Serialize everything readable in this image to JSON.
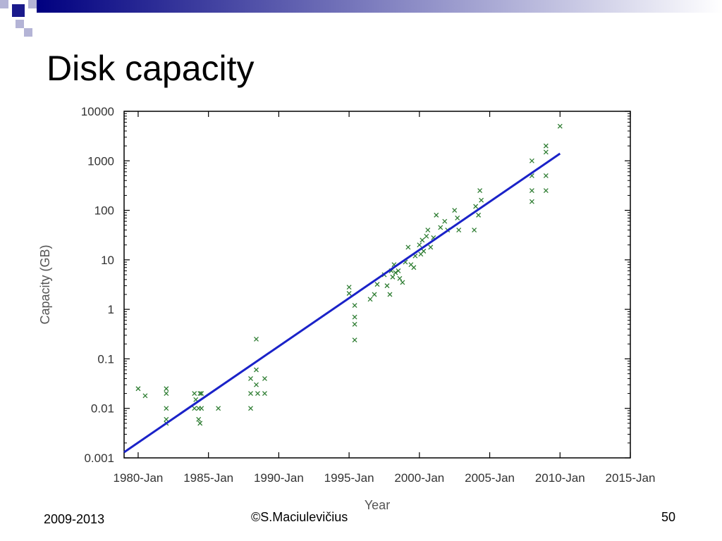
{
  "slide": {
    "title": "Disk capacity",
    "footer_left": "2009-2013",
    "footer_center": "©S.Maciulevičius",
    "page_number": "50"
  },
  "decoration": {
    "bar_color_dark": "#000080",
    "bar_color_light": "#ffffff",
    "square_dark": "#1a1a8c",
    "square_light": "#b4b4d6"
  },
  "chart_data": {
    "type": "scatter",
    "xlabel": "Year",
    "ylabel": "Capacity (GB)",
    "xlim": [
      1979,
      2015
    ],
    "ylim": [
      0.001,
      10000
    ],
    "yscale": "log",
    "grid": false,
    "marker": "x",
    "marker_color": "#2e7d32",
    "line_color": "#1a22c8",
    "x_ticks": [
      1980,
      1985,
      1990,
      1995,
      2000,
      2005,
      2010,
      2015
    ],
    "x_tick_labels": [
      "1980-Jan",
      "1985-Jan",
      "1990-Jan",
      "1995-Jan",
      "2000-Jan",
      "2005-Jan",
      "2010-Jan",
      "2015-Jan"
    ],
    "y_ticks": [
      0.001,
      0.01,
      0.1,
      1,
      10,
      100,
      1000,
      10000
    ],
    "y_tick_labels": [
      "0.001",
      "0.01",
      "0.1",
      "1",
      "10",
      "100",
      "1000",
      "10000"
    ],
    "trend_line": {
      "x": [
        1979,
        2010
      ],
      "y": [
        0.0013,
        1400
      ]
    },
    "series": [
      {
        "x": [
          1980.0,
          1980.5,
          1982.0,
          1982.0,
          1982.0,
          1982.0,
          1982.0,
          1984.0,
          1984.0,
          1984.1,
          1984.3,
          1984.4,
          1984.5,
          1984.4,
          1984.5,
          1984.3,
          1985.7,
          1988.0,
          1988.0,
          1988.0,
          1988.4,
          1988.4,
          1988.4,
          1988.5,
          1989.0,
          1989.0,
          1995.0,
          1995.0,
          1995.4,
          1995.4,
          1995.4,
          1995.4,
          1996.5,
          1996.8,
          1997.0,
          1997.5,
          1997.7,
          1997.9,
          1998.0,
          1998.1,
          1998.2,
          1998.3,
          1998.5,
          1998.6,
          1998.8,
          1999.0,
          1999.2,
          1999.4,
          1999.6,
          1999.7,
          2000.0,
          2000.1,
          2000.2,
          2000.3,
          2000.5,
          2000.6,
          2000.8,
          2001.0,
          2001.2,
          2001.5,
          2001.8,
          2002.0,
          2002.5,
          2002.7,
          2002.8,
          2003.9,
          2004.0,
          2004.2,
          2004.3,
          2004.4,
          2008.0,
          2008.0,
          2008.0,
          2008.0,
          2009.0,
          2009.0,
          2009.0,
          2009.0,
          2010.0
        ],
        "y": [
          0.025,
          0.018,
          0.025,
          0.02,
          0.01,
          0.006,
          0.005,
          0.02,
          0.01,
          0.015,
          0.006,
          0.02,
          0.02,
          0.005,
          0.01,
          0.01,
          0.01,
          0.04,
          0.02,
          0.01,
          0.25,
          0.06,
          0.03,
          0.02,
          0.04,
          0.02,
          2.8,
          2.1,
          1.2,
          0.7,
          0.5,
          0.24,
          1.6,
          2.0,
          3.2,
          5.0,
          3.0,
          2.0,
          6.0,
          4.5,
          8.0,
          5.5,
          6.0,
          4.2,
          3.5,
          9.0,
          18.0,
          8.0,
          7.0,
          12.0,
          20.0,
          13.0,
          25.0,
          15.0,
          30.0,
          40.0,
          18.0,
          28.0,
          80.0,
          45.0,
          60.0,
          40.0,
          100.0,
          70.0,
          40.0,
          40.0,
          120.0,
          80.0,
          250.0,
          160.0,
          1000.0,
          500.0,
          250.0,
          150.0,
          2000.0,
          1500.0,
          500.0,
          250.0,
          5000.0
        ]
      }
    ]
  }
}
